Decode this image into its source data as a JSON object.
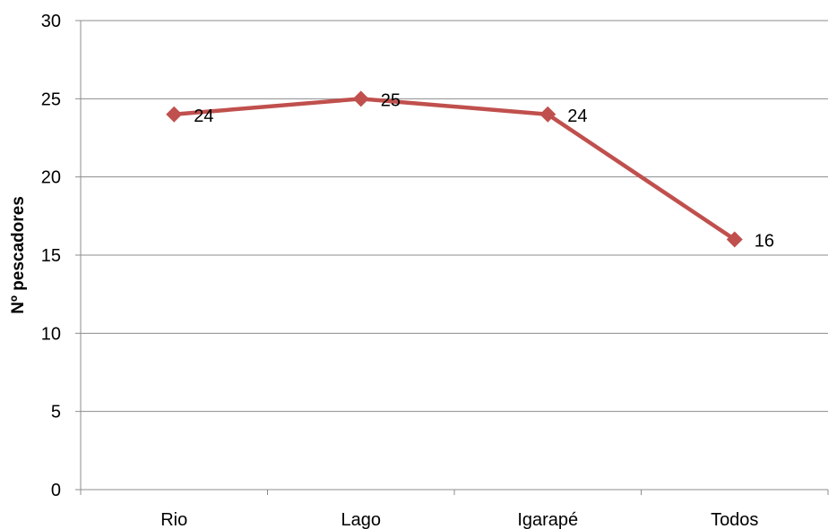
{
  "chart_data": {
    "type": "line",
    "categories": [
      "Rio",
      "Lago",
      "Igarapé",
      "Todos"
    ],
    "series": [
      {
        "values": [
          24,
          25,
          24,
          16
        ]
      }
    ],
    "ylabel": "Nº pescadores",
    "xlabel": "",
    "ylim": [
      0,
      30
    ],
    "yticks": [
      0,
      5,
      10,
      15,
      20,
      25,
      30
    ],
    "grid": true,
    "marker": "diamond",
    "colors": {
      "series": "#c0504d",
      "grid": "#8c8c8c",
      "text": "#000000"
    }
  }
}
